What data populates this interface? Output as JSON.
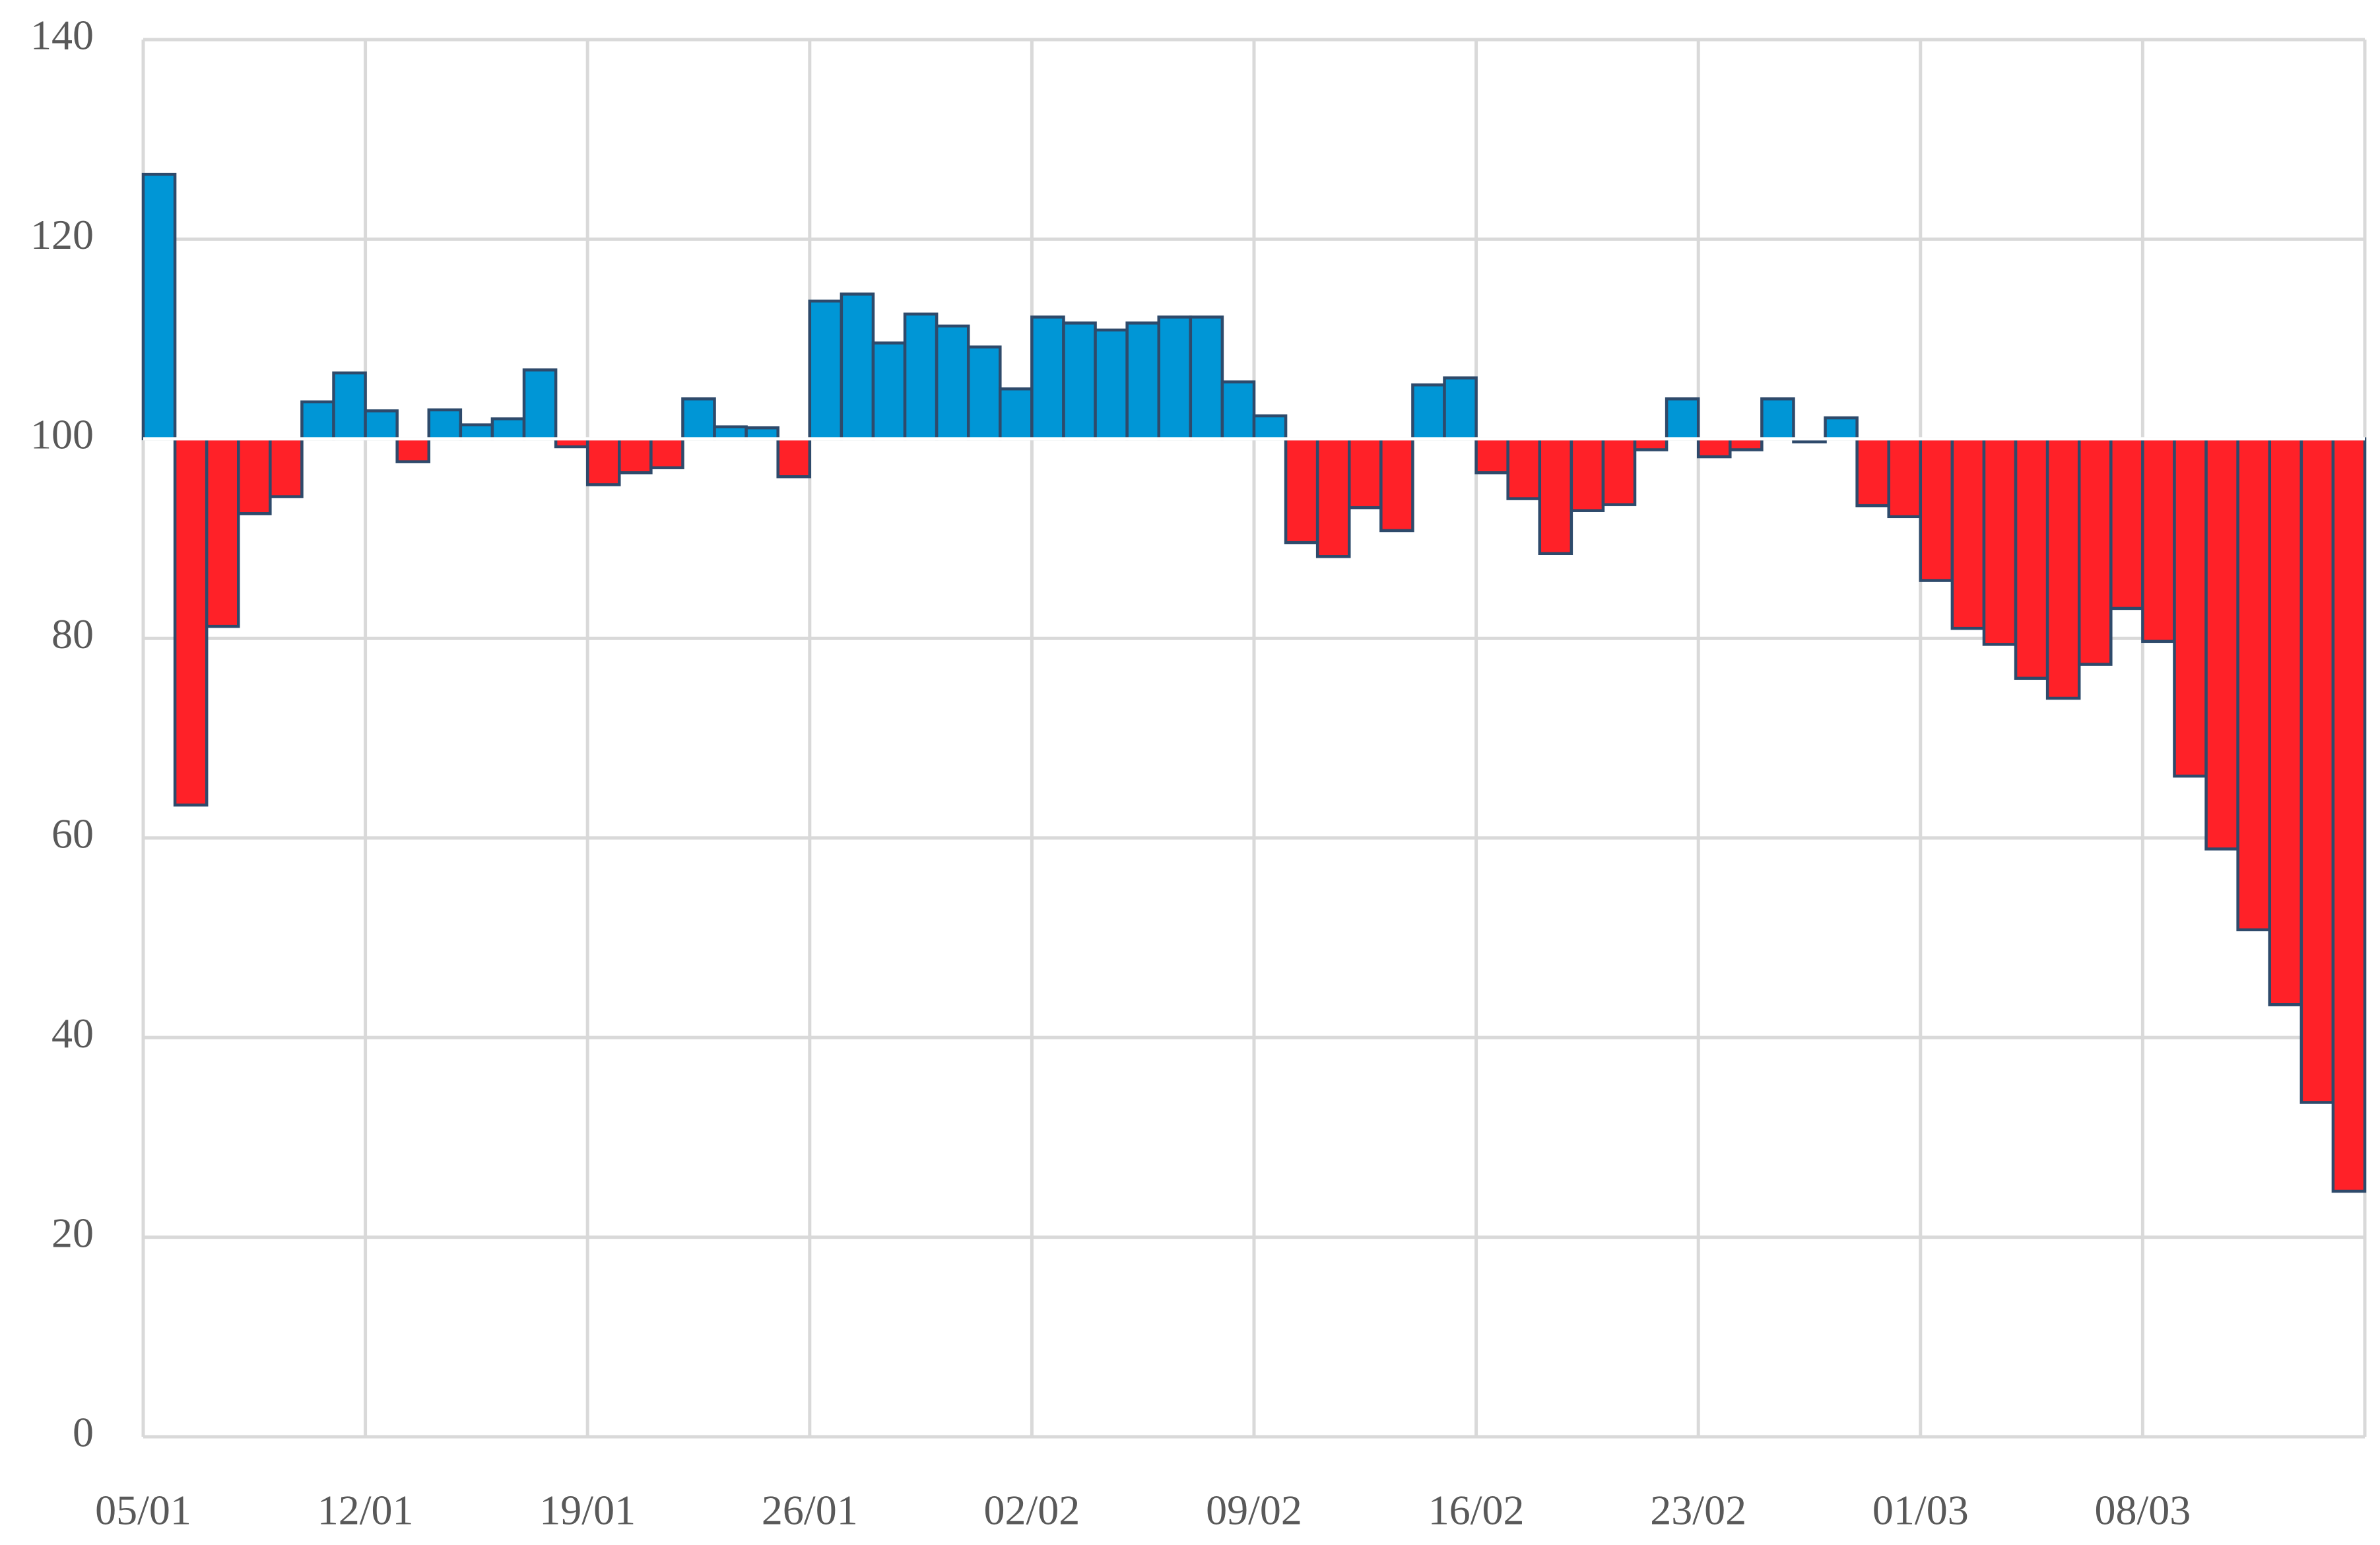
{
  "chart_data": {
    "type": "bar",
    "categories": [
      "05/01",
      null,
      null,
      null,
      null,
      null,
      null,
      "12/01",
      null,
      null,
      null,
      null,
      null,
      null,
      "19/01",
      null,
      null,
      null,
      null,
      null,
      null,
      "26/01",
      null,
      null,
      null,
      null,
      null,
      null,
      "02/02",
      null,
      null,
      null,
      null,
      null,
      null,
      "09/02",
      null,
      null,
      null,
      null,
      null,
      null,
      "16/02",
      null,
      null,
      null,
      null,
      null,
      null,
      "23/02",
      null,
      null,
      null,
      null,
      null,
      null,
      "01/03",
      null,
      null,
      null,
      null,
      null,
      null,
      "08/03",
      null,
      null,
      null,
      null,
      null,
      null
    ],
    "values": [
      126.5,
      63.3,
      81.2,
      92.5,
      94.2,
      103.7,
      106.6,
      102.8,
      97.7,
      102.9,
      101.4,
      102,
      106.9,
      99.2,
      95.4,
      96.6,
      97.1,
      104,
      101.2,
      101.1,
      96.2,
      113.8,
      114.5,
      109.6,
      112.5,
      111.3,
      109.2,
      105,
      112.2,
      111.6,
      110.9,
      111.6,
      112.2,
      112.2,
      105.7,
      102.3,
      89.6,
      88.2,
      93.1,
      90.8,
      105.4,
      106.1,
      96.6,
      94,
      88.5,
      92.8,
      93.4,
      98.9,
      104,
      98.2,
      98.9,
      104,
      99.7,
      102.1,
      93.3,
      92.2,
      85.8,
      81,
      79.4,
      76,
      74,
      77.4,
      83,
      79.7,
      66.2,
      58.9,
      50.8,
      43.3,
      33.5,
      24.6
    ],
    "base": 100,
    "color_above": "#0096d6",
    "color_below": "#ff2128",
    "edge_color": "#2e4a6b",
    "ylim": [
      0,
      140
    ],
    "yticks": [
      0,
      20,
      40,
      60,
      80,
      100,
      120,
      140
    ],
    "grid": true
  }
}
